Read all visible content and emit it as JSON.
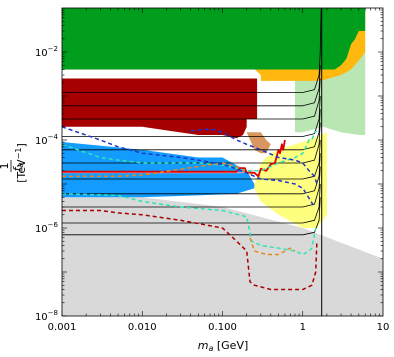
{
  "chart_data": {
    "type": "area",
    "xscale": "log",
    "yscale": "log",
    "xlim": [
      0.001,
      10
    ],
    "ylim": [
      1e-08,
      0.1
    ],
    "xlabel": {
      "var": "m",
      "sub": "a",
      "unit": " [GeV]"
    },
    "ylabel": {
      "num": "1",
      "var": "f",
      "sub": "a",
      "unit": " [TeV",
      "sup": "−1",
      "close": "]"
    },
    "xticks": [
      {
        "value": 0.001,
        "label": "0.001"
      },
      {
        "value": 0.01,
        "label": "0.010"
      },
      {
        "value": 0.1,
        "label": "0.100"
      },
      {
        "value": 1,
        "label": "1"
      },
      {
        "value": 10,
        "label": "10"
      }
    ],
    "yticks": [
      {
        "value": 1e-08,
        "base": "10",
        "exp": "−8"
      },
      {
        "value": 1e-06,
        "base": "10",
        "exp": "−6"
      },
      {
        "value": 0.0001,
        "base": "10",
        "exp": "−4"
      },
      {
        "value": 0.01,
        "base": "10",
        "exp": "−2"
      }
    ],
    "regions": [
      {
        "color": "#d9d9d9",
        "points": [
          [
            0.001,
            1e-08
          ],
          [
            0.001,
            5e-06
          ],
          [
            0.01,
            5e-06
          ],
          [
            0.1,
            3e-06
          ],
          [
            1,
            1e-06
          ],
          [
            10,
            2e-07
          ],
          [
            10,
            1e-08
          ]
        ]
      },
      {
        "color": "#b9e6b3",
        "points": [
          [
            0.8,
            0.003
          ],
          [
            3,
            0.003
          ],
          [
            5,
            0.01
          ],
          [
            6,
            0.02
          ],
          [
            6,
            0.00013
          ],
          [
            5,
            0.00013
          ],
          [
            3,
            0.00015
          ],
          [
            1.8,
            0.0002
          ],
          [
            1,
            0.00015
          ],
          [
            0.8,
            0.00015
          ]
        ]
      },
      {
        "color": "#feb80e",
        "points": [
          [
            0.2,
            0.006
          ],
          [
            0.2,
            0.02
          ],
          [
            3,
            0.02
          ],
          [
            3.5,
            0.04
          ],
          [
            4,
            0.06
          ],
          [
            5,
            0.1
          ],
          [
            6,
            0.1
          ],
          [
            6,
            0.01
          ],
          [
            5.5,
            0.008
          ],
          [
            4,
            0.004
          ],
          [
            3,
            0.003
          ],
          [
            1.8,
            0.0023
          ],
          [
            1.5,
            0.0022
          ],
          [
            0.3,
            0.0022
          ],
          [
            0.3,
            0.003
          ],
          [
            0.2,
            0.006
          ]
        ]
      },
      {
        "color": "#009e1c",
        "points": [
          [
            0.001,
            0.1
          ],
          [
            6,
            0.1
          ],
          [
            6,
            0.03
          ],
          [
            5,
            0.03
          ],
          [
            4.5,
            0.02
          ],
          [
            4,
            0.015
          ],
          [
            3.5,
            0.007
          ],
          [
            3,
            0.005
          ],
          [
            2.5,
            0.004
          ],
          [
            0.001,
            0.004
          ]
        ]
      },
      {
        "color": "#139cfe",
        "points": [
          [
            0.001,
            9e-05
          ],
          [
            0.01,
            6e-05
          ],
          [
            0.05,
            4e-05
          ],
          [
            0.1,
            4e-05
          ],
          [
            0.2,
            2e-05
          ],
          [
            0.25,
            1e-05
          ],
          [
            0.25,
            8e-06
          ],
          [
            0.15,
            6e-06
          ],
          [
            0.05,
            5.5e-06
          ],
          [
            0.01,
            5e-06
          ],
          [
            0.001,
            5e-06
          ]
        ]
      },
      {
        "color": "#ffff7f",
        "points": [
          [
            0.25,
            8e-06
          ],
          [
            0.25,
            1e-05
          ],
          [
            0.3,
            3e-05
          ],
          [
            0.4,
            5e-05
          ],
          [
            0.5,
            6e-05
          ],
          [
            0.8,
            8e-05
          ],
          [
            1,
            9e-05
          ],
          [
            1.5,
            0.00012
          ],
          [
            2,
            0.00015
          ],
          [
            2,
            2e-06
          ],
          [
            1.5,
            1e-06
          ],
          [
            1,
            1e-06
          ],
          [
            0.5,
            2e-06
          ],
          [
            0.3,
            4e-06
          ]
        ]
      },
      {
        "color": "#d8975e",
        "points": [
          [
            0.2,
            0.00015
          ],
          [
            0.3,
            0.00015
          ],
          [
            0.35,
            0.0001
          ],
          [
            0.4,
            8e-05
          ],
          [
            0.35,
            5e-05
          ],
          [
            0.3,
            5e-05
          ],
          [
            0.25,
            6e-05
          ]
        ]
      },
      {
        "color": "#a60000",
        "points": [
          [
            0.001,
            0.0025
          ],
          [
            0.27,
            0.0025
          ],
          [
            0.27,
            0.0003
          ],
          [
            0.2,
            0.0003
          ],
          [
            0.2,
            0.0002
          ],
          [
            0.18,
            0.00013
          ],
          [
            0.15,
            0.00011
          ],
          [
            0.12,
            0.00012
          ],
          [
            0.1,
            0.00013
          ],
          [
            0.05,
            0.00013
          ],
          [
            0.01,
            0.0002
          ],
          [
            0.005,
            0.0002
          ],
          [
            0.001,
            0.0002
          ]
        ]
      }
    ],
    "curves": [
      {
        "color": "#000000",
        "dash": "none",
        "width": 0.8,
        "points": [
          [
            0.001,
            0.0012
          ],
          [
            0.5,
            0.0012
          ],
          [
            1,
            0.0012
          ],
          [
            1.4,
            0.0014
          ],
          [
            1.6,
            0.003
          ],
          [
            1.65,
            0.01
          ],
          [
            1.7,
            0.1
          ]
        ]
      },
      {
        "color": "#000000",
        "dash": "none",
        "width": 0.8,
        "points": [
          [
            0.001,
            0.0006
          ],
          [
            1,
            0.0006
          ],
          [
            1.4,
            0.0007
          ],
          [
            1.6,
            0.0015
          ],
          [
            1.65,
            0.005
          ]
        ]
      },
      {
        "color": "#000000",
        "dash": "none",
        "width": 0.8,
        "points": [
          [
            0.001,
            0.0003
          ],
          [
            1,
            0.0003
          ],
          [
            1.4,
            0.00035
          ],
          [
            1.6,
            0.0008
          ],
          [
            1.65,
            0.0025
          ]
        ]
      },
      {
        "color": "#000000",
        "dash": "none",
        "width": 0.8,
        "points": [
          [
            0.001,
            0.00012
          ],
          [
            1,
            0.00012
          ],
          [
            1.4,
            0.00014
          ],
          [
            1.6,
            0.0003
          ],
          [
            1.65,
            0.001
          ]
        ]
      },
      {
        "color": "#000000",
        "dash": "none",
        "width": 0.8,
        "points": [
          [
            0.001,
            6e-05
          ],
          [
            1,
            6e-05
          ],
          [
            1.4,
            7e-05
          ],
          [
            1.6,
            0.00015
          ],
          [
            1.65,
            0.0005
          ]
        ]
      },
      {
        "color": "#000000",
        "dash": "none",
        "width": 0.8,
        "points": [
          [
            0.001,
            3e-05
          ],
          [
            1,
            3e-05
          ],
          [
            1.4,
            3.5e-05
          ],
          [
            1.6,
            8e-05
          ],
          [
            1.65,
            0.00025
          ]
        ]
      },
      {
        "color": "#000000",
        "dash": "none",
        "width": 0.8,
        "points": [
          [
            0.001,
            1.3e-05
          ],
          [
            1,
            1.3e-05
          ],
          [
            1.4,
            1.5e-05
          ],
          [
            1.6,
            3e-05
          ],
          [
            1.65,
            0.0001
          ]
        ]
      },
      {
        "color": "#000000",
        "dash": "none",
        "width": 0.8,
        "points": [
          [
            0.001,
            6e-06
          ],
          [
            1,
            6e-06
          ],
          [
            1.4,
            7e-06
          ],
          [
            1.6,
            1.5e-05
          ],
          [
            1.65,
            5e-05
          ]
        ]
      },
      {
        "color": "#000000",
        "dash": "none",
        "width": 0.8,
        "points": [
          [
            0.001,
            3e-06
          ],
          [
            1,
            3e-06
          ],
          [
            1.4,
            3.5e-06
          ],
          [
            1.6,
            8e-06
          ],
          [
            1.65,
            2.5e-05
          ]
        ]
      },
      {
        "color": "#000000",
        "dash": "none",
        "width": 0.8,
        "points": [
          [
            0.001,
            1.3e-06
          ],
          [
            1,
            1.3e-06
          ],
          [
            1.4,
            1.5e-06
          ],
          [
            1.6,
            3e-06
          ],
          [
            1.65,
            1e-05
          ]
        ]
      },
      {
        "color": "#000000",
        "dash": "none",
        "width": 0.8,
        "points": [
          [
            0.001,
            7e-07
          ],
          [
            1,
            7e-07
          ],
          [
            1.4,
            8e-07
          ],
          [
            1.6,
            1.5e-06
          ],
          [
            1.65,
            5e-06
          ]
        ]
      },
      {
        "color": "#000000",
        "dash": "none",
        "width": 1.0,
        "points": [
          [
            1.72,
            0.1
          ],
          [
            1.72,
            1e-08
          ]
        ]
      },
      {
        "color": "#ff9d9d",
        "dash": "none",
        "width": 1.0,
        "points": [
          [
            0.001,
            1.8e-05
          ],
          [
            0.18,
            1.8e-05
          ],
          [
            0.25,
            2e-05
          ]
        ]
      },
      {
        "color": "#dd0000",
        "dash": "none",
        "width": 1.8,
        "points": [
          [
            0.001,
            1.9e-05
          ],
          [
            0.15,
            1.9e-05
          ],
          [
            0.16,
            2.3e-05
          ],
          [
            0.19,
            2.3e-05
          ],
          [
            0.2,
            1.8e-05
          ],
          [
            0.25,
            1.8e-05
          ],
          [
            0.28,
            1.5e-05
          ],
          [
            0.3,
            2.2e-05
          ],
          [
            0.35,
            2e-05
          ],
          [
            0.4,
            2.8e-05
          ],
          [
            0.45,
            3e-05
          ],
          [
            0.5,
            6e-05
          ],
          [
            0.52,
            5e-05
          ],
          [
            0.55,
            8e-05
          ],
          [
            0.57,
            6e-05
          ],
          [
            0.6,
            0.0001
          ]
        ]
      },
      {
        "color": "#2ce4b5",
        "dash": "4 3",
        "width": 1.5,
        "points": [
          [
            0.001,
            8e-05
          ],
          [
            0.003,
            4e-05
          ],
          [
            0.005,
            3.5e-05
          ],
          [
            0.01,
            3e-05
          ],
          [
            0.05,
            3e-05
          ],
          [
            0.1,
            2.7e-05
          ],
          [
            0.2,
            2e-05
          ],
          [
            0.3,
            2e-05
          ],
          [
            0.5,
            3e-05
          ],
          [
            0.8,
            4e-05
          ],
          [
            1,
            5e-05
          ],
          [
            1.2,
            0.0001
          ],
          [
            1.3,
            0.0001
          ],
          [
            1.4,
            0.00015
          ],
          [
            1.5,
            0.00016
          ]
        ]
      },
      {
        "color": "#2ce4b5",
        "dash": "4 3",
        "width": 1.5,
        "points": [
          [
            0.001,
            6e-06
          ],
          [
            0.005,
            5.5e-06
          ],
          [
            0.01,
            4e-06
          ],
          [
            0.03,
            3e-06
          ],
          [
            0.1,
            2.5e-06
          ],
          [
            0.2,
            1.8e-06
          ],
          [
            0.22,
            8e-07
          ],
          [
            0.23,
            5e-07
          ],
          [
            0.3,
            4e-07
          ],
          [
            0.5,
            3.5e-07
          ],
          [
            0.8,
            3e-07
          ],
          [
            1,
            2.5e-07
          ],
          [
            1.2,
            3e-07
          ],
          [
            1.3,
            3.5e-07
          ],
          [
            1.45,
            1e-06
          ]
        ]
      },
      {
        "color": "#e88620",
        "dash": "4 3",
        "width": 1.5,
        "points": [
          [
            0.001,
            1.5e-05
          ],
          [
            0.005,
            1.5e-05
          ],
          [
            0.01,
            1.6e-05
          ],
          [
            0.05,
            2.5e-05
          ],
          [
            0.1,
            3e-05
          ],
          [
            0.15,
            2.5e-05
          ],
          [
            0.2,
            1.8e-05
          ],
          [
            0.25,
            1.6e-05
          ]
        ]
      },
      {
        "color": "#e88620",
        "dash": "4 3",
        "width": 1.5,
        "points": [
          [
            0.22,
            6e-07
          ],
          [
            0.25,
            3e-07
          ],
          [
            0.35,
            2.5e-07
          ],
          [
            0.5,
            2.5e-07
          ],
          [
            0.7,
            3.5e-07
          ],
          [
            0.8,
            3e-07
          ]
        ]
      },
      {
        "color": "#1d34ca",
        "dash": "4 3",
        "width": 1.5,
        "points": [
          [
            0.001,
            0.0002
          ],
          [
            0.003,
            0.0001
          ],
          [
            0.005,
            7e-05
          ],
          [
            0.01,
            5e-05
          ],
          [
            0.03,
            4e-05
          ],
          [
            0.05,
            3.5e-05
          ],
          [
            0.1,
            2.8e-05
          ],
          [
            0.15,
            2.2e-05
          ],
          [
            0.2,
            1.8e-05
          ],
          [
            0.25,
            1.5e-05
          ],
          [
            0.3,
            1.3e-05
          ],
          [
            0.5,
            1.2e-05
          ],
          [
            0.8,
            1e-05
          ],
          [
            1,
            8e-06
          ],
          [
            1.4,
            3e-06
          ]
        ]
      },
      {
        "color": "#1d34ca",
        "dash": "4 3",
        "width": 1.5,
        "points": [
          [
            0.04,
            0.00016
          ],
          [
            0.07,
            0.00018
          ],
          [
            0.1,
            0.00015
          ],
          [
            0.15,
            0.0001
          ],
          [
            0.2,
            8e-05
          ],
          [
            0.3,
            6e-05
          ],
          [
            0.5,
            4e-05
          ],
          [
            0.8,
            3.5e-05
          ],
          [
            1,
            3e-05
          ],
          [
            1.2,
            2e-05
          ],
          [
            1.4,
            1.5e-05
          ],
          [
            1.5,
            1e-05
          ]
        ]
      },
      {
        "color": "#a80000",
        "dash": "4 3",
        "width": 1.5,
        "points": [
          [
            0.001,
            2.5e-06
          ],
          [
            0.003,
            2.5e-06
          ],
          [
            0.005,
            2.2e-06
          ],
          [
            0.01,
            2e-06
          ],
          [
            0.03,
            1.5e-06
          ],
          [
            0.1,
            1e-06
          ],
          [
            0.15,
            5e-07
          ],
          [
            0.2,
            3e-07
          ],
          [
            0.22,
            6e-08
          ],
          [
            0.25,
            5e-08
          ],
          [
            0.4,
            4e-08
          ],
          [
            0.6,
            4e-08
          ],
          [
            1,
            4e-08
          ],
          [
            1.3,
            5e-08
          ],
          [
            1.45,
            1e-07
          ],
          [
            1.5,
            5e-07
          ]
        ]
      }
    ]
  }
}
